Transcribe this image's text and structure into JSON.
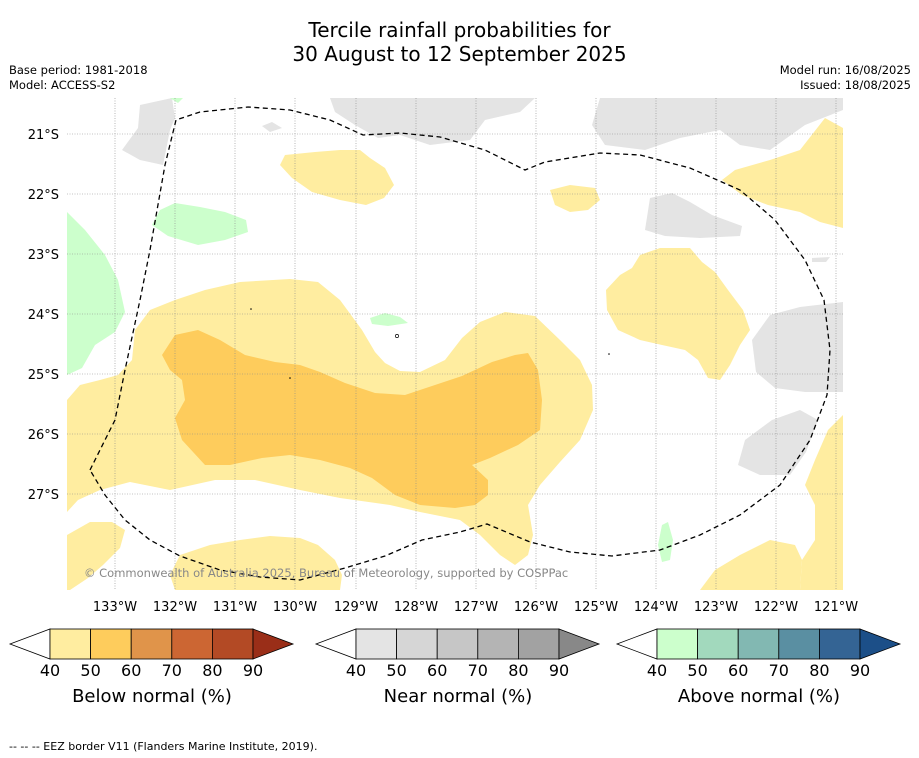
{
  "title_line1": "Tercile rainfall probabilities for",
  "title_line2": "30 August to 12 September 2025",
  "base_period": "Base period: 1981-2018",
  "model": "Model: ACCESS-S2",
  "model_run": "Model run: 16/08/2025",
  "issued": "Issued: 18/08/2025",
  "lat_labels": [
    "21°S",
    "22°S",
    "23°S",
    "24°S",
    "25°S",
    "26°S",
    "27°S"
  ],
  "lon_labels": [
    "133°W",
    "132°W",
    "131°W",
    "130°W",
    "129°W",
    "128°W",
    "127°W",
    "126°W",
    "125°W",
    "124°W",
    "123°W",
    "122°W",
    "121°W"
  ],
  "copyright": "© Commonwealth of Australia 2025, Bureau of Meteorology, supported by COSPPac",
  "colorbars": [
    {
      "label": "Below normal (%)",
      "ticks": [
        "40",
        "50",
        "60",
        "70",
        "80",
        "90"
      ],
      "colors": [
        "#ffeda0",
        "#fecc5c",
        "#e0944a",
        "#cc6633",
        "#b34a25",
        "#9a2e18"
      ]
    },
    {
      "label": "Near normal (%)",
      "ticks": [
        "40",
        "50",
        "60",
        "70",
        "80",
        "90"
      ],
      "colors": [
        "#e4e4e4",
        "#d6d6d6",
        "#c6c6c6",
        "#b4b4b4",
        "#a2a2a2",
        "#888888"
      ]
    },
    {
      "label": "Above normal (%)",
      "ticks": [
        "40",
        "50",
        "60",
        "70",
        "80",
        "90"
      ],
      "colors": [
        "#ccffcc",
        "#a2d9bd",
        "#82b8b2",
        "#5a8fa2",
        "#346494",
        "#1c4f88"
      ]
    }
  ],
  "colors": {
    "below_40": "#ffeda0",
    "below_50": "#fecc5c",
    "near_40": "#e4e4e4",
    "above_40": "#ccffcc"
  },
  "footer": "--  --  -- EEZ border V11 (Flanders Marine Institute, 2019)."
}
